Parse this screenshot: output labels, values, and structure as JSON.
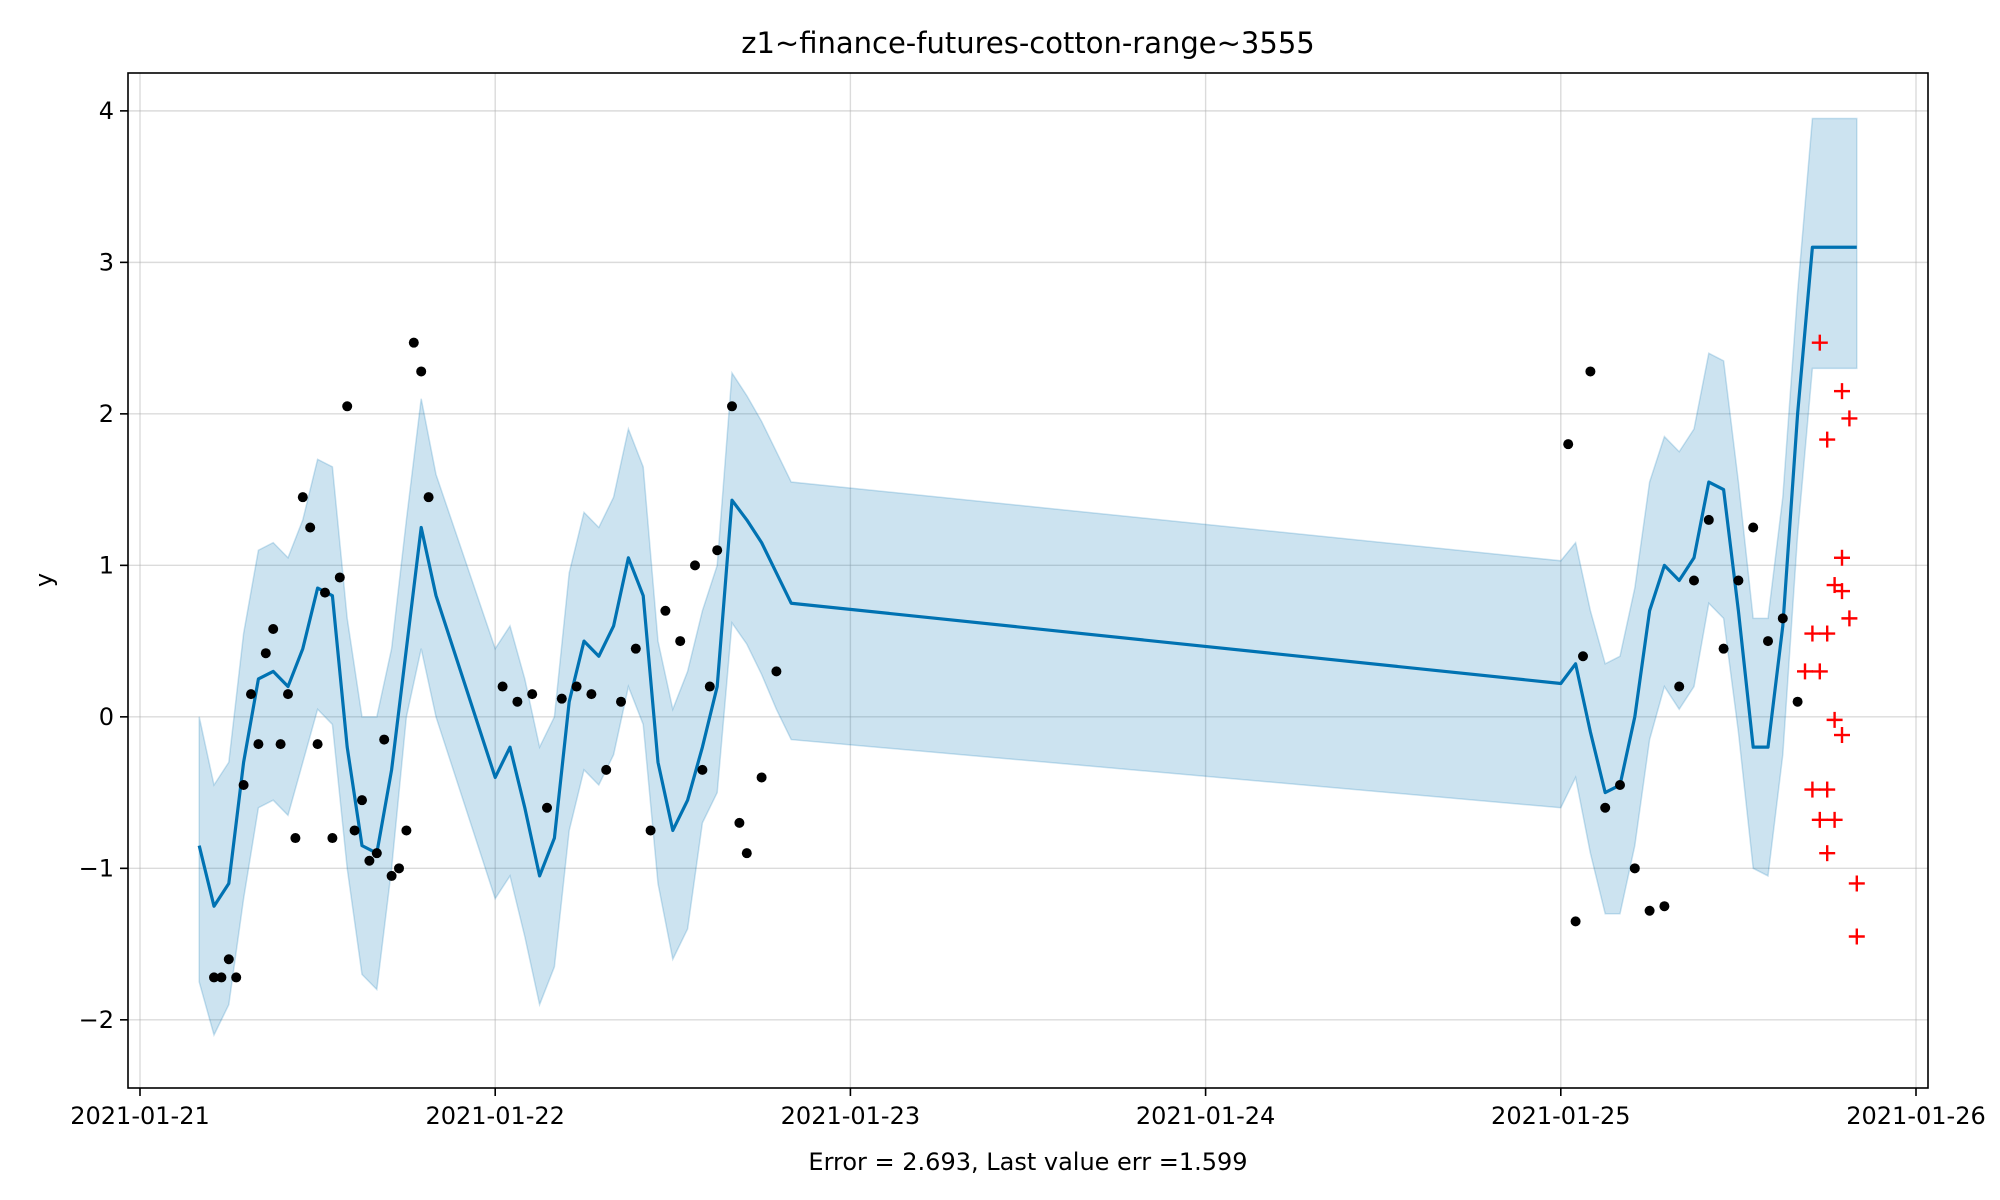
{
  "chart_data": {
    "type": "line",
    "title": "z1~finance-futures-cotton-range~3555",
    "xlabel": "Error = 2.693, Last value err =1.599",
    "ylabel": "y",
    "xlim": [
      "2021-01-21 00:00",
      "2021-01-26 00:00"
    ],
    "ylim": [
      -2.45,
      4.25
    ],
    "x_ticks": [
      "2021-01-21",
      "2021-01-22",
      "2021-01-23",
      "2021-01-24",
      "2021-01-25",
      "2021-01-26"
    ],
    "y_ticks": [
      "−2",
      "−1",
      "0",
      "1",
      "2",
      "3",
      "4"
    ],
    "grid": true,
    "colors": {
      "forecast": "#0072B2",
      "band": "#0072B2",
      "history": "#000000",
      "actual": "#ff0000"
    },
    "forecast": {
      "x": [
        "2021-01-21 04:00",
        "2021-01-21 05:00",
        "2021-01-21 06:00",
        "2021-01-21 07:00",
        "2021-01-21 08:00",
        "2021-01-21 09:00",
        "2021-01-21 10:00",
        "2021-01-21 11:00",
        "2021-01-21 12:00",
        "2021-01-21 13:00",
        "2021-01-21 14:00",
        "2021-01-21 15:00",
        "2021-01-21 16:00",
        "2021-01-21 17:00",
        "2021-01-21 18:00",
        "2021-01-21 19:00",
        "2021-01-21 20:00",
        "2021-01-22 00:00",
        "2021-01-22 01:00",
        "2021-01-22 02:00",
        "2021-01-22 03:00",
        "2021-01-22 04:00",
        "2021-01-22 05:00",
        "2021-01-22 06:00",
        "2021-01-22 07:00",
        "2021-01-22 08:00",
        "2021-01-22 09:00",
        "2021-01-22 10:00",
        "2021-01-22 11:00",
        "2021-01-22 12:00",
        "2021-01-22 13:00",
        "2021-01-22 14:00",
        "2021-01-22 15:00",
        "2021-01-22 16:00",
        "2021-01-22 17:00",
        "2021-01-22 18:00",
        "2021-01-22 19:00",
        "2021-01-22 20:00",
        "2021-01-25 00:00",
        "2021-01-25 01:00",
        "2021-01-25 02:00",
        "2021-01-25 03:00",
        "2021-01-25 04:00",
        "2021-01-25 05:00",
        "2021-01-25 06:00",
        "2021-01-25 07:00",
        "2021-01-25 08:00",
        "2021-01-25 09:00",
        "2021-01-25 10:00",
        "2021-01-25 11:00",
        "2021-01-25 12:00",
        "2021-01-25 13:00",
        "2021-01-25 14:00",
        "2021-01-25 15:00",
        "2021-01-25 16:00",
        "2021-01-25 17:00",
        "2021-01-25 18:00",
        "2021-01-25 19:00",
        "2021-01-25 20:00"
      ],
      "yhat": [
        -0.85,
        -1.25,
        -1.1,
        -0.3,
        0.25,
        0.3,
        0.2,
        0.45,
        0.85,
        0.8,
        -0.2,
        -0.85,
        -0.9,
        -0.35,
        0.45,
        1.25,
        0.8,
        -0.4,
        -0.2,
        -0.6,
        -1.05,
        -0.8,
        0.1,
        0.5,
        0.4,
        0.6,
        1.05,
        0.8,
        -0.3,
        -0.75,
        -0.55,
        -0.2,
        0.2,
        1.43,
        1.3,
        1.15,
        0.95,
        0.75,
        0.22,
        0.35,
        -0.1,
        -0.5,
        -0.45,
        0.0,
        0.7,
        1.0,
        0.9,
        1.05,
        1.55,
        1.5,
        0.7,
        -0.2,
        -0.2,
        0.6,
        2.0,
        3.1,
        3.1,
        3.1,
        3.1
      ],
      "yhat_lower": [
        -1.75,
        -2.1,
        -1.9,
        -1.2,
        -0.6,
        -0.55,
        -0.65,
        -0.3,
        0.05,
        -0.05,
        -1.0,
        -1.7,
        -1.8,
        -1.0,
        0.0,
        0.45,
        0.0,
        -1.2,
        -1.05,
        -1.45,
        -1.9,
        -1.65,
        -0.75,
        -0.35,
        -0.45,
        -0.25,
        0.2,
        -0.05,
        -1.1,
        -1.6,
        -1.4,
        -0.7,
        -0.5,
        0.62,
        0.48,
        0.28,
        0.05,
        -0.15,
        -0.6,
        -0.4,
        -0.9,
        -1.3,
        -1.3,
        -0.85,
        -0.15,
        0.2,
        0.05,
        0.2,
        0.75,
        0.65,
        -0.1,
        -1.0,
        -1.05,
        -0.25,
        1.2,
        2.3,
        2.3,
        2.3,
        2.3
      ],
      "yhat_upper": [
        0.0,
        -0.45,
        -0.3,
        0.55,
        1.1,
        1.15,
        1.05,
        1.3,
        1.7,
        1.65,
        0.65,
        0.0,
        0.0,
        0.45,
        1.3,
        2.1,
        1.6,
        0.45,
        0.6,
        0.25,
        -0.2,
        0.0,
        0.95,
        1.35,
        1.25,
        1.45,
        1.9,
        1.65,
        0.5,
        0.05,
        0.3,
        0.7,
        1.0,
        2.27,
        2.12,
        1.95,
        1.75,
        1.55,
        1.03,
        1.15,
        0.7,
        0.35,
        0.4,
        0.85,
        1.55,
        1.85,
        1.75,
        1.9,
        2.4,
        2.35,
        1.55,
        0.65,
        0.65,
        1.45,
        2.8,
        3.95,
        3.95,
        3.95,
        3.95
      ]
    },
    "history": {
      "x": [
        "2021-01-21 05:00",
        "2021-01-21 05:30",
        "2021-01-21 06:00",
        "2021-01-21 06:30",
        "2021-01-21 07:00",
        "2021-01-21 07:30",
        "2021-01-21 08:00",
        "2021-01-21 08:30",
        "2021-01-21 09:00",
        "2021-01-21 09:30",
        "2021-01-21 10:00",
        "2021-01-21 10:30",
        "2021-01-21 11:00",
        "2021-01-21 11:30",
        "2021-01-21 12:00",
        "2021-01-21 12:30",
        "2021-01-21 13:00",
        "2021-01-21 13:30",
        "2021-01-21 14:00",
        "2021-01-21 14:30",
        "2021-01-21 15:00",
        "2021-01-21 15:30",
        "2021-01-21 16:00",
        "2021-01-21 16:30",
        "2021-01-21 17:00",
        "2021-01-21 17:30",
        "2021-01-21 18:00",
        "2021-01-21 18:30",
        "2021-01-21 19:00",
        "2021-01-21 19:30",
        "2021-01-22 00:30",
        "2021-01-22 01:30",
        "2021-01-22 02:30",
        "2021-01-22 03:30",
        "2021-01-22 04:30",
        "2021-01-22 05:30",
        "2021-01-22 06:30",
        "2021-01-22 07:30",
        "2021-01-22 08:30",
        "2021-01-22 09:30",
        "2021-01-22 10:30",
        "2021-01-22 11:30",
        "2021-01-22 12:30",
        "2021-01-22 13:30",
        "2021-01-22 14:00",
        "2021-01-22 14:30",
        "2021-01-22 15:00",
        "2021-01-22 16:00",
        "2021-01-22 16:30",
        "2021-01-22 17:00",
        "2021-01-22 18:00",
        "2021-01-22 19:00",
        "2021-01-25 00:30",
        "2021-01-25 01:00",
        "2021-01-25 01:30",
        "2021-01-25 02:00",
        "2021-01-25 03:00",
        "2021-01-25 04:00",
        "2021-01-25 05:00",
        "2021-01-25 06:00",
        "2021-01-25 07:00",
        "2021-01-25 08:00",
        "2021-01-25 09:00",
        "2021-01-25 10:00",
        "2021-01-25 11:00",
        "2021-01-25 12:00",
        "2021-01-25 13:00",
        "2021-01-25 14:00",
        "2021-01-25 15:00",
        "2021-01-25 16:00"
      ],
      "y": [
        -1.72,
        -1.72,
        -1.6,
        -1.72,
        -0.45,
        0.15,
        -0.18,
        0.42,
        0.58,
        -0.18,
        0.15,
        -0.8,
        1.45,
        1.25,
        -0.18,
        0.82,
        -0.8,
        0.92,
        2.05,
        -0.75,
        -0.55,
        -0.95,
        -0.9,
        -0.15,
        -1.05,
        -1.0,
        -0.75,
        2.47,
        2.28,
        1.45,
        0.2,
        0.1,
        0.15,
        -0.6,
        0.12,
        0.2,
        0.15,
        -0.35,
        0.1,
        0.45,
        -0.75,
        0.7,
        0.5,
        1.0,
        -0.35,
        0.2,
        1.1,
        2.05,
        -0.7,
        -0.9,
        -0.4,
        0.3,
        1.8,
        -1.35,
        0.4,
        2.28,
        -0.6,
        -0.45,
        -1.0,
        -1.28,
        -1.25,
        0.2,
        0.9,
        1.3,
        0.45,
        0.9,
        1.25,
        0.5,
        0.65,
        0.1
      ]
    },
    "actual": {
      "x": [
        "2021-01-25 16:30",
        "2021-01-25 17:00",
        "2021-01-25 17:00",
        "2021-01-25 17:30",
        "2021-01-25 17:30",
        "2021-01-25 17:30",
        "2021-01-25 18:00",
        "2021-01-25 18:00",
        "2021-01-25 18:00",
        "2021-01-25 18:00",
        "2021-01-25 18:30",
        "2021-01-25 18:30",
        "2021-01-25 18:30",
        "2021-01-25 19:00",
        "2021-01-25 19:00",
        "2021-01-25 19:00",
        "2021-01-25 19:00",
        "2021-01-25 19:30",
        "2021-01-25 19:30",
        "2021-01-25 20:00",
        "2021-01-25 20:00"
      ],
      "y": [
        0.3,
        0.55,
        -0.48,
        2.47,
        0.3,
        -0.68,
        1.83,
        -0.9,
        0.55,
        -0.48,
        0.87,
        -0.68,
        -0.02,
        2.15,
        1.05,
        0.83,
        -0.12,
        1.97,
        0.65,
        -1.1,
        -1.45
      ]
    }
  }
}
